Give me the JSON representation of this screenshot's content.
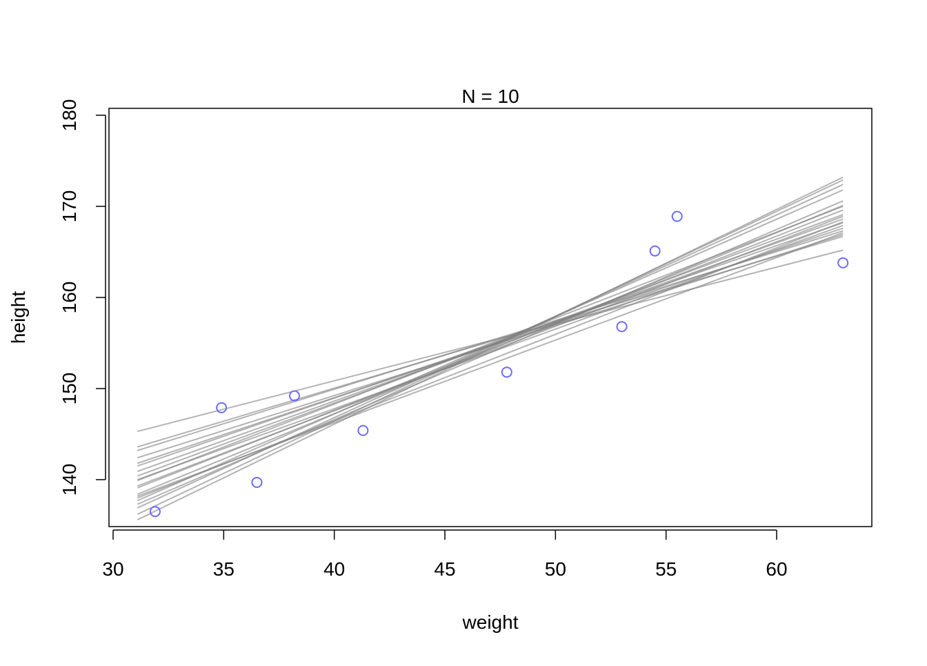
{
  "chart_data": {
    "type": "scatter",
    "title": "N = 10",
    "xlabel": "weight",
    "ylabel": "height",
    "xlim": [
      31.1,
      63.0
    ],
    "ylim": [
      135.0,
      180.0
    ],
    "x_ticks": [
      30,
      35,
      40,
      45,
      50,
      55,
      60
    ],
    "y_ticks": [
      140,
      150,
      160,
      170,
      180
    ],
    "grid": false,
    "colors": {
      "points": "#6b6bff",
      "lines": "#808080",
      "axis": "#000000"
    },
    "points": [
      {
        "x": 31.9,
        "y": 136.5
      },
      {
        "x": 34.9,
        "y": 147.9
      },
      {
        "x": 36.5,
        "y": 139.7
      },
      {
        "x": 38.2,
        "y": 149.2
      },
      {
        "x": 41.3,
        "y": 145.4
      },
      {
        "x": 47.8,
        "y": 151.8
      },
      {
        "x": 53.0,
        "y": 156.8
      },
      {
        "x": 54.5,
        "y": 165.1
      },
      {
        "x": 55.5,
        "y": 168.9
      },
      {
        "x": 63.0,
        "y": 163.8
      }
    ],
    "regression_lines": [
      {
        "x0": 31.1,
        "y0": 145.3,
        "x1": 63.0,
        "y1": 165.2
      },
      {
        "x0": 31.1,
        "y0": 143.6,
        "x1": 63.0,
        "y1": 166.7
      },
      {
        "x0": 31.1,
        "y0": 143.2,
        "x1": 63.0,
        "y1": 167.3
      },
      {
        "x0": 31.1,
        "y0": 141.8,
        "x1": 63.0,
        "y1": 167.6
      },
      {
        "x0": 31.1,
        "y0": 141.5,
        "x1": 63.0,
        "y1": 168.2
      },
      {
        "x0": 31.1,
        "y0": 140.9,
        "x1": 63.0,
        "y1": 168.6
      },
      {
        "x0": 31.1,
        "y0": 140.4,
        "x1": 63.0,
        "y1": 169.1
      },
      {
        "x0": 31.1,
        "y0": 140.0,
        "x1": 63.0,
        "y1": 167.9
      },
      {
        "x0": 31.1,
        "y0": 139.9,
        "x1": 63.0,
        "y1": 170.0
      },
      {
        "x0": 31.1,
        "y0": 139.3,
        "x1": 63.0,
        "y1": 168.9
      },
      {
        "x0": 31.1,
        "y0": 138.4,
        "x1": 63.0,
        "y1": 170.1
      },
      {
        "x0": 31.1,
        "y0": 138.0,
        "x1": 63.0,
        "y1": 168.3
      },
      {
        "x0": 31.1,
        "y0": 137.7,
        "x1": 63.0,
        "y1": 171.8
      },
      {
        "x0": 31.1,
        "y0": 136.9,
        "x1": 63.0,
        "y1": 172.4
      },
      {
        "x0": 31.1,
        "y0": 136.2,
        "x1": 63.0,
        "y1": 172.9
      },
      {
        "x0": 31.1,
        "y0": 135.6,
        "x1": 63.0,
        "y1": 173.2
      },
      {
        "x0": 31.1,
        "y0": 138.2,
        "x1": 63.0,
        "y1": 167.1
      },
      {
        "x0": 31.1,
        "y0": 142.4,
        "x1": 63.0,
        "y1": 166.9
      },
      {
        "x0": 31.1,
        "y0": 139.1,
        "x1": 63.0,
        "y1": 169.6
      },
      {
        "x0": 31.1,
        "y0": 137.3,
        "x1": 63.0,
        "y1": 170.6
      }
    ]
  }
}
